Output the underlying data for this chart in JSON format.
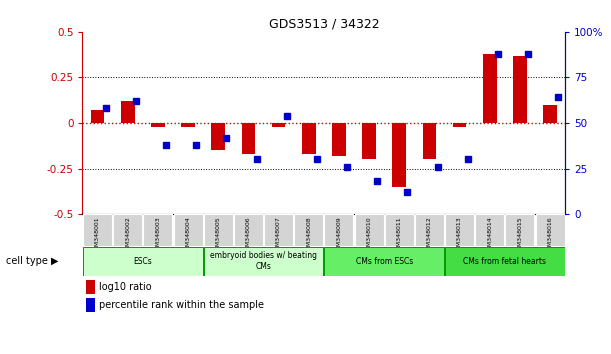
{
  "title": "GDS3513 / 34322",
  "samples": [
    "GSM348001",
    "GSM348002",
    "GSM348003",
    "GSM348004",
    "GSM348005",
    "GSM348006",
    "GSM348007",
    "GSM348008",
    "GSM348009",
    "GSM348010",
    "GSM348011",
    "GSM348012",
    "GSM348013",
    "GSM348014",
    "GSM348015",
    "GSM348016"
  ],
  "log10_ratio": [
    0.07,
    0.12,
    -0.02,
    -0.02,
    -0.15,
    -0.17,
    -0.02,
    -0.17,
    -0.18,
    -0.2,
    -0.35,
    -0.2,
    -0.02,
    0.38,
    0.37,
    0.1
  ],
  "percentile_rank": [
    58,
    62,
    38,
    38,
    42,
    30,
    54,
    30,
    26,
    18,
    12,
    26,
    30,
    88,
    88,
    64
  ],
  "cell_types": [
    {
      "label": "ESCs",
      "start": 0,
      "end": 4,
      "color": "#ccffcc"
    },
    {
      "label": "embryoid bodies w/ beating\nCMs",
      "start": 4,
      "end": 8,
      "color": "#ccffcc"
    },
    {
      "label": "CMs from ESCs",
      "start": 8,
      "end": 12,
      "color": "#66ee66"
    },
    {
      "label": "CMs from fetal hearts",
      "start": 12,
      "end": 16,
      "color": "#44dd44"
    }
  ],
  "ylim_left": [
    -0.5,
    0.5
  ],
  "ylim_right": [
    0,
    100
  ],
  "yticks_left": [
    -0.5,
    -0.25,
    0,
    0.25,
    0.5
  ],
  "yticks_right": [
    0,
    25,
    50,
    75,
    100
  ],
  "ytick_labels_left": [
    "-0.5",
    "-0.25",
    "0",
    "0.25",
    "0.5"
  ],
  "ytick_labels_right": [
    "0",
    "25",
    "50",
    "75",
    "100%"
  ],
  "red_color": "#cc0000",
  "blue_color": "#0000cc",
  "dotted_color": "#888888",
  "bar_width": 0.5,
  "marker_size": 5
}
